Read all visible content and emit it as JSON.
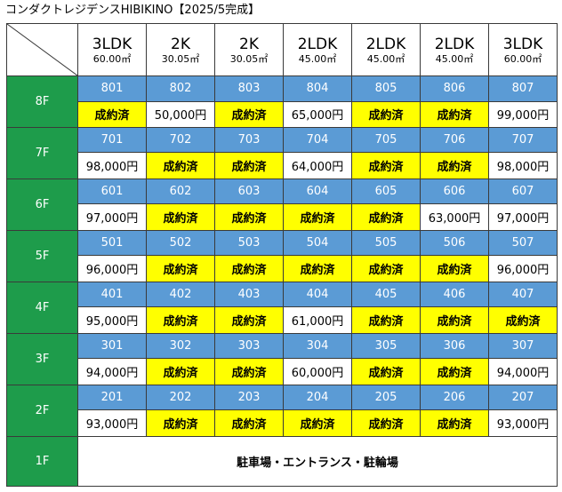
{
  "title": "コンダクトレジデンスHIBIKINO【2025/5完成】",
  "columns": [
    {
      "type": "3LDK",
      "area": "60.00㎡"
    },
    {
      "type": "2K",
      "area": "30.05㎡"
    },
    {
      "type": "2K",
      "area": "30.05㎡"
    },
    {
      "type": "2LDK",
      "area": "45.00㎡"
    },
    {
      "type": "2LDK",
      "area": "45.00㎡"
    },
    {
      "type": "2LDK",
      "area": "45.00㎡"
    },
    {
      "type": "3LDK",
      "area": "60.00㎡"
    }
  ],
  "floors": [
    {
      "label": "8F",
      "units": [
        {
          "room": "801",
          "status": "成約済",
          "contracted": true
        },
        {
          "room": "802",
          "status": "50,000円",
          "contracted": false
        },
        {
          "room": "803",
          "status": "成約済",
          "contracted": true
        },
        {
          "room": "804",
          "status": "65,000円",
          "contracted": false
        },
        {
          "room": "805",
          "status": "成約済",
          "contracted": true
        },
        {
          "room": "806",
          "status": "成約済",
          "contracted": true
        },
        {
          "room": "807",
          "status": "99,000円",
          "contracted": false
        }
      ]
    },
    {
      "label": "7F",
      "units": [
        {
          "room": "701",
          "status": "98,000円",
          "contracted": false
        },
        {
          "room": "702",
          "status": "成約済",
          "contracted": true
        },
        {
          "room": "703",
          "status": "成約済",
          "contracted": true
        },
        {
          "room": "704",
          "status": "64,000円",
          "contracted": false
        },
        {
          "room": "705",
          "status": "成約済",
          "contracted": true
        },
        {
          "room": "706",
          "status": "成約済",
          "contracted": true
        },
        {
          "room": "707",
          "status": "98,000円",
          "contracted": false
        }
      ]
    },
    {
      "label": "6F",
      "units": [
        {
          "room": "601",
          "status": "97,000円",
          "contracted": false
        },
        {
          "room": "602",
          "status": "成約済",
          "contracted": true
        },
        {
          "room": "603",
          "status": "成約済",
          "contracted": true
        },
        {
          "room": "604",
          "status": "成約済",
          "contracted": true
        },
        {
          "room": "605",
          "status": "成約済",
          "contracted": true
        },
        {
          "room": "606",
          "status": "63,000円",
          "contracted": false
        },
        {
          "room": "607",
          "status": "97,000円",
          "contracted": false
        }
      ]
    },
    {
      "label": "5F",
      "units": [
        {
          "room": "501",
          "status": "96,000円",
          "contracted": false
        },
        {
          "room": "502",
          "status": "成約済",
          "contracted": true
        },
        {
          "room": "503",
          "status": "成約済",
          "contracted": true
        },
        {
          "room": "504",
          "status": "成約済",
          "contracted": true
        },
        {
          "room": "505",
          "status": "成約済",
          "contracted": true
        },
        {
          "room": "506",
          "status": "成約済",
          "contracted": true
        },
        {
          "room": "507",
          "status": "96,000円",
          "contracted": false
        }
      ]
    },
    {
      "label": "4F",
      "units": [
        {
          "room": "401",
          "status": "95,000円",
          "contracted": false
        },
        {
          "room": "402",
          "status": "成約済",
          "contracted": true
        },
        {
          "room": "403",
          "status": "成約済",
          "contracted": true
        },
        {
          "room": "404",
          "status": "61,000円",
          "contracted": false
        },
        {
          "room": "405",
          "status": "成約済",
          "contracted": true
        },
        {
          "room": "406",
          "status": "成約済",
          "contracted": true
        },
        {
          "room": "407",
          "status": "成約済",
          "contracted": true
        }
      ]
    },
    {
      "label": "3F",
      "units": [
        {
          "room": "301",
          "status": "94,000円",
          "contracted": false
        },
        {
          "room": "302",
          "status": "成約済",
          "contracted": true
        },
        {
          "room": "303",
          "status": "成約済",
          "contracted": true
        },
        {
          "room": "304",
          "status": "60,000円",
          "contracted": false
        },
        {
          "room": "305",
          "status": "成約済",
          "contracted": true
        },
        {
          "room": "306",
          "status": "成約済",
          "contracted": true
        },
        {
          "room": "307",
          "status": "94,000円",
          "contracted": false
        }
      ]
    },
    {
      "label": "2F",
      "units": [
        {
          "room": "201",
          "status": "93,000円",
          "contracted": false
        },
        {
          "room": "202",
          "status": "成約済",
          "contracted": true
        },
        {
          "room": "203",
          "status": "成約済",
          "contracted": true
        },
        {
          "room": "204",
          "status": "成約済",
          "contracted": true
        },
        {
          "room": "205",
          "status": "成約済",
          "contracted": true
        },
        {
          "room": "206",
          "status": "成約済",
          "contracted": true
        },
        {
          "room": "207",
          "status": "93,000円",
          "contracted": false
        }
      ]
    }
  ],
  "ground": {
    "label": "1F",
    "text": "駐車場・エントランス・駐輪場"
  },
  "colors": {
    "floor": "#1e9c4b",
    "room": "#5b9bd5",
    "contracted": "#ffff00"
  }
}
